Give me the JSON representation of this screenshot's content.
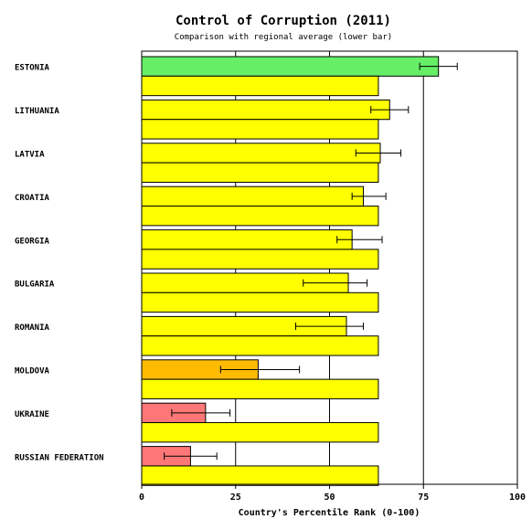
{
  "chart_data": {
    "type": "bar",
    "title": "Control of Corruption (2011)",
    "subtitle": "Comparison with regional average (lower bar)",
    "xlabel": "Country's Percentile Rank (0-100)",
    "ylabel": "",
    "xlim": [
      0,
      100
    ],
    "x_ticks": [
      "0",
      "25",
      "50",
      "75",
      "100"
    ],
    "grid": true,
    "orientation": "horizontal",
    "categories": [
      "ESTONIA",
      "LITHUANIA",
      "LATVIA",
      "CROATIA",
      "GEORGIA",
      "BULGARIA",
      "ROMANIA",
      "MOLDOVA",
      "UKRAINE",
      "RUSSIAN FEDERATION"
    ],
    "series": [
      {
        "values": [
          79,
          66,
          63.5,
          59,
          56,
          55,
          54.5,
          31,
          17,
          13
        ],
        "ci_low": [
          74,
          61,
          57,
          56,
          52,
          43,
          41,
          21,
          8,
          6
        ],
        "ci_high": [
          84,
          71,
          69,
          65,
          64,
          60,
          59,
          42,
          23.5,
          20
        ],
        "colors": [
          "#66ee66",
          "#ffff00",
          "#ffff00",
          "#ffff00",
          "#ffff00",
          "#ffff00",
          "#ffff00",
          "#ffbb00",
          "#ff7777",
          "#ff7777"
        ]
      },
      {
        "values": [
          63,
          63,
          63,
          63,
          63,
          63,
          63,
          63,
          63,
          63
        ],
        "color": "#ffff00"
      }
    ]
  }
}
